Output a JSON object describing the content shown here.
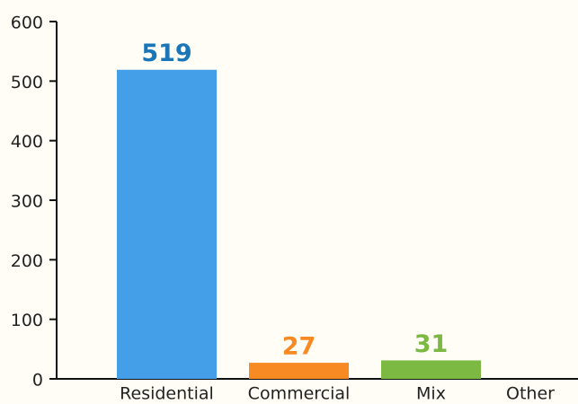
{
  "chart_data": {
    "type": "bar",
    "categories": [
      "Residential",
      "Commercial",
      "Mix",
      "Other"
    ],
    "values": [
      519,
      27,
      31,
      null
    ],
    "colors": [
      "#449ee8",
      "#f88a24",
      "#7bb942",
      "#999999"
    ],
    "value_label_colors": [
      "#1b76b8",
      "#f88a24",
      "#7bb942",
      "#999999"
    ],
    "ylim": [
      0,
      600
    ],
    "yticks": [
      0,
      100,
      200,
      300,
      400,
      500,
      600
    ],
    "grid": false
  }
}
